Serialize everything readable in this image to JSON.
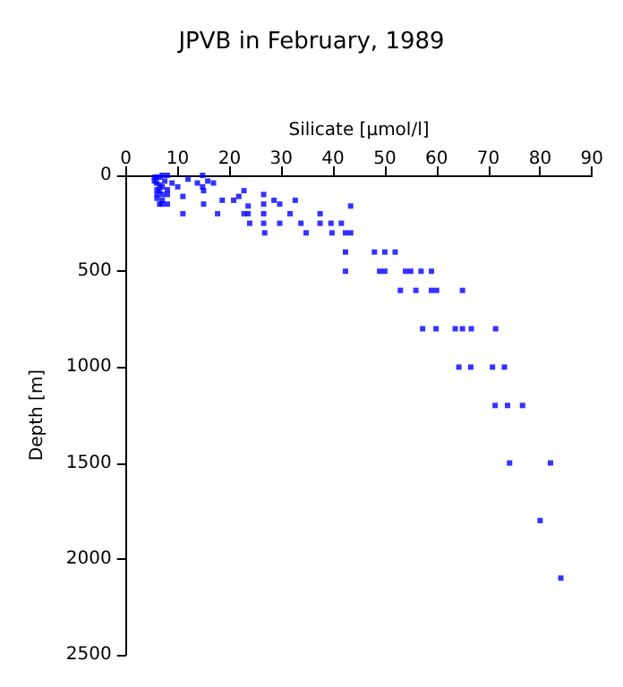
{
  "chart_data": {
    "type": "scatter",
    "title": "JPVB in February, 1989",
    "xlabel": "Silicate [µmol/l]",
    "ylabel": "Depth [m]",
    "xlim": [
      0,
      90
    ],
    "xticks": [
      0,
      10,
      20,
      30,
      40,
      50,
      60,
      70,
      80,
      90
    ],
    "ylim": [
      2500,
      0
    ],
    "yticks": [
      0,
      500,
      1000,
      1500,
      2000,
      2500
    ],
    "grid": false,
    "marker": "square",
    "series": [
      {
        "color": "#0000ff",
        "x": [
          5.5,
          5.9,
          6.5,
          7,
          8,
          5.5,
          5.9,
          6.5,
          7.5,
          6,
          6.5,
          7,
          8,
          6,
          7,
          8,
          6.5,
          7,
          8,
          6,
          7,
          8.9,
          10,
          11,
          11,
          12,
          13.8,
          14.8,
          14.8,
          15,
          15,
          15.8,
          16.9,
          17.7,
          18.6,
          20.8,
          21.8,
          22.8,
          22.8,
          23.6,
          23.6,
          23.9,
          26.6,
          26.6,
          26.6,
          26.6,
          26.8,
          28.6,
          29.7,
          29.7,
          31.7,
          32.7,
          33.8,
          34.8,
          37.5,
          37.5,
          39.6,
          39.8,
          41.6,
          43.4,
          42.4,
          43.4,
          42.4,
          42.4,
          48,
          50,
          52,
          49,
          50,
          54,
          55,
          57,
          59,
          53,
          56,
          59,
          60,
          65,
          57.3,
          59.9,
          63.6,
          65,
          66.7,
          71.4,
          64.3,
          66.6,
          70.8,
          73.1,
          71.3,
          73.7,
          76.6,
          74.1,
          82,
          80,
          84
        ],
        "values": [
          10,
          10,
          10,
          0,
          0,
          30,
          40,
          50,
          30,
          75,
          80,
          100,
          75,
          120,
          130,
          100,
          150,
          150,
          150,
          100,
          60,
          40,
          60,
          110,
          200,
          20,
          40,
          0,
          60,
          80,
          150,
          30,
          40,
          200,
          130,
          130,
          110,
          80,
          200,
          160,
          200,
          250,
          100,
          150,
          200,
          250,
          300,
          130,
          150,
          250,
          200,
          130,
          250,
          300,
          200,
          250,
          250,
          300,
          250,
          160,
          300,
          300,
          400,
          500,
          400,
          400,
          400,
          500,
          500,
          500,
          500,
          500,
          500,
          600,
          600,
          600,
          600,
          600,
          800,
          800,
          800,
          800,
          800,
          800,
          1000,
          1000,
          1000,
          1000,
          1200,
          1200,
          1200,
          1500,
          1500,
          1800,
          2100
        ]
      }
    ]
  }
}
